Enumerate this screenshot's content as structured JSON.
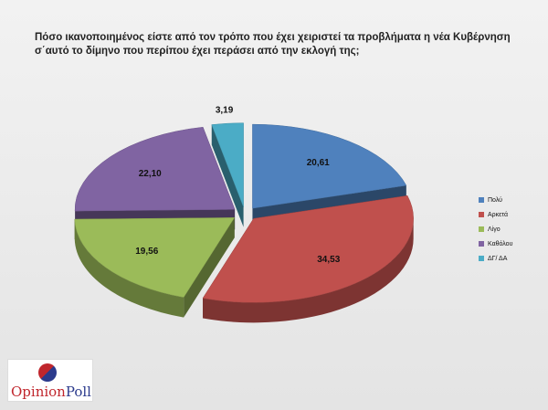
{
  "chart_data": {
    "type": "pie",
    "title": "Πόσο ικανοποιημένος είστε από τον τρόπο που έχει χειριστεί τα προβλήματα η νέα Κυβέρνηση σ΄αυτό το δίμηνο που περίπου έχει περάσει από την εκλογή της;",
    "categories": [
      "Πολύ",
      "Αρκετά",
      "Λίγο",
      "Καθόλου",
      "ΔΓ/ ΔΑ"
    ],
    "values": [
      20.61,
      34.53,
      19.56,
      22.1,
      3.19
    ],
    "value_labels": [
      "20,61",
      "34,53",
      "19,56",
      "22,10",
      "3,19"
    ],
    "colors": [
      "#4f81bd",
      "#c0504d",
      "#9bbb59",
      "#8064a2",
      "#4bacc6"
    ],
    "legend": "right"
  },
  "logo": {
    "part1": "Opinion",
    "part2": "Poll"
  }
}
